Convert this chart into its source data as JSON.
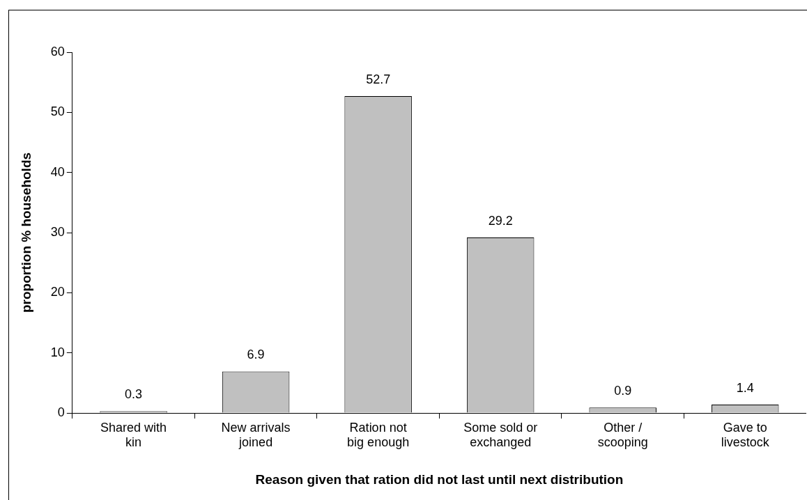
{
  "chart_data": {
    "type": "bar",
    "xlabel": "Reason given that ration did not last until next distribution",
    "ylabel": "proportion % households",
    "categories": [
      "Shared with\nkin",
      "New arrivals\njoined",
      "Ration not\nbig enough",
      "Some sold or\nexchanged",
      "Other /\nscooping",
      "Gave to\nlivestock"
    ],
    "values": [
      0.3,
      6.9,
      52.7,
      29.2,
      0.9,
      1.4
    ],
    "color": "#c0c0c0",
    "ylim": [
      0,
      60
    ],
    "yticks": [
      0,
      10,
      20,
      30,
      40,
      50,
      60
    ],
    "grid": false,
    "legend": false,
    "data_labels": true
  }
}
